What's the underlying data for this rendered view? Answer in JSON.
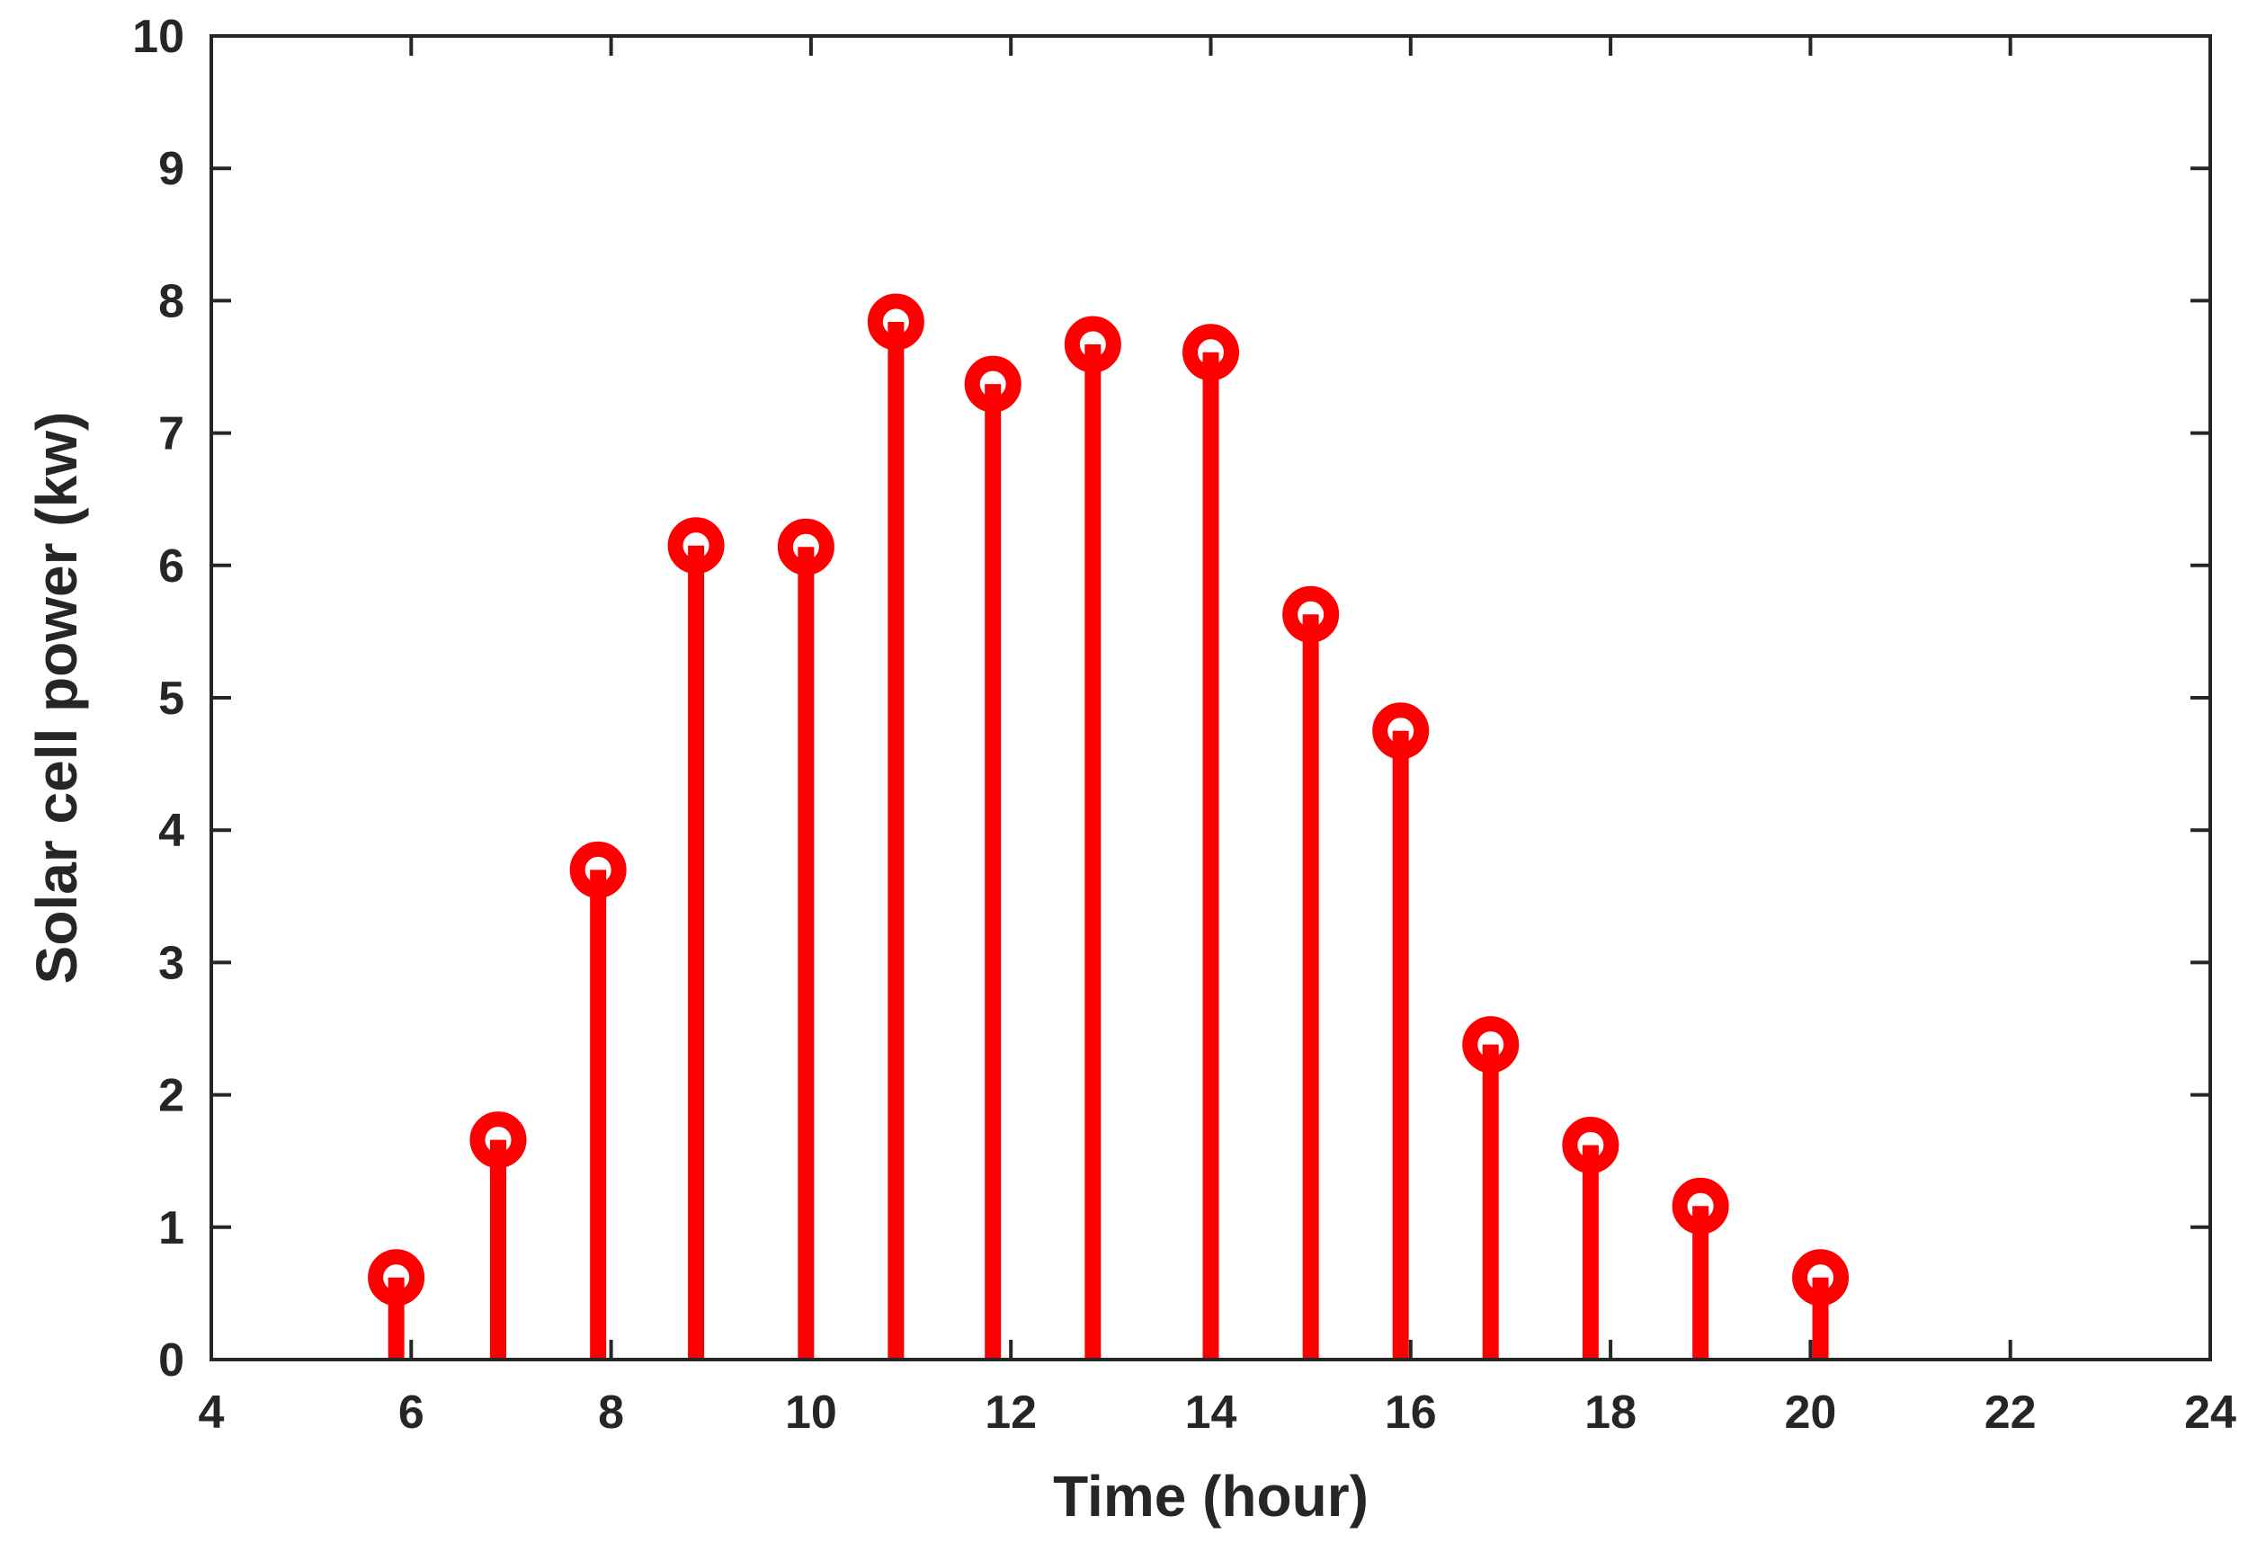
{
  "chart_data": {
    "type": "stem",
    "title": "",
    "xlabel": "Time (hour)",
    "ylabel": "Solar cell power (kw)",
    "xlim": [
      4,
      24
    ],
    "ylim": [
      0,
      10
    ],
    "xticks": [
      4,
      6,
      8,
      10,
      12,
      14,
      16,
      18,
      20,
      22,
      24
    ],
    "yticks": [
      0,
      1,
      2,
      3,
      4,
      5,
      6,
      7,
      8,
      9,
      10
    ],
    "grid": false,
    "series": [
      {
        "color": "#ff0000",
        "marker": "circle",
        "x": [
          5.85,
          6.87,
          7.87,
          8.85,
          9.95,
          10.85,
          11.82,
          12.82,
          14.0,
          15.0,
          15.9,
          16.8,
          17.8,
          18.9,
          20.1
        ],
        "y": [
          0.62,
          1.66,
          3.7,
          6.15,
          6.14,
          7.84,
          7.37,
          7.67,
          7.61,
          5.63,
          4.75,
          2.38,
          1.62,
          1.16,
          0.62
        ]
      }
    ]
  }
}
